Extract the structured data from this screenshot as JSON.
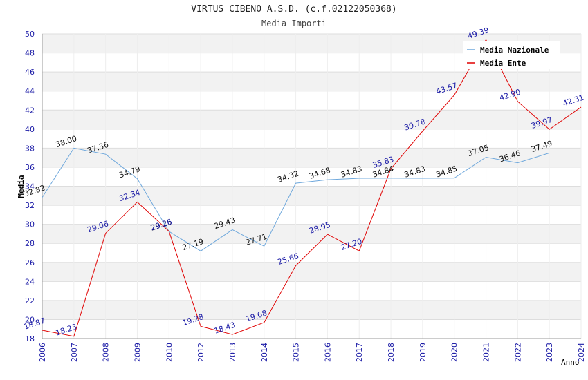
{
  "chart_data": {
    "type": "line",
    "title": "VIRTUS CIBENO A.S.D. (c.f.02122050368)",
    "subtitle": "Media Importi",
    "ylabel": "Media",
    "xlabel": "Anno",
    "ylim": [
      18,
      50
    ],
    "yticks": [
      18,
      20,
      22,
      24,
      26,
      28,
      30,
      32,
      34,
      36,
      38,
      40,
      42,
      44,
      46,
      48,
      50
    ],
    "x": [
      "2006",
      "2007",
      "2008",
      "2009",
      "2010",
      "2012",
      "2013",
      "2014",
      "2015",
      "2016",
      "2017",
      "2018",
      "2019",
      "2020",
      "2021",
      "2022",
      "2023",
      "2024"
    ],
    "grid": true,
    "legend": "top-right",
    "series": [
      {
        "name": "Media Nazionale",
        "color": "#6fa8dc",
        "label_color": "#111111",
        "values": [
          32.82,
          38.0,
          37.36,
          34.79,
          29.25,
          27.19,
          29.43,
          27.71,
          34.32,
          34.68,
          34.83,
          34.84,
          34.83,
          34.85,
          37.05,
          36.46,
          37.49,
          null
        ],
        "labels": [
          "32.82",
          "38.00",
          "37.36",
          "34.79",
          "29.25",
          "27.19",
          "29.43",
          "27.71",
          "34.32",
          "34.68",
          "34.83",
          "34.84",
          "34.83",
          "34.85",
          "37.05",
          "36.46",
          "37.49",
          ""
        ]
      },
      {
        "name": "Media Ente",
        "color": "#e00000",
        "label_color": "#1a1aa6",
        "values": [
          18.87,
          18.23,
          29.06,
          32.34,
          29.26,
          19.28,
          18.43,
          19.68,
          25.66,
          28.95,
          27.2,
          35.83,
          39.78,
          43.57,
          49.39,
          42.9,
          39.97,
          42.31
        ],
        "labels": [
          "18.87",
          "18.23",
          "29.06",
          "32.34",
          "29.26",
          "19.28",
          "18.43",
          "19.68",
          "25.66",
          "28.95",
          "27.20",
          "35.83",
          "39.78",
          "43.57",
          "49.39",
          "42.90",
          "39.97",
          "42.31"
        ]
      }
    ]
  }
}
